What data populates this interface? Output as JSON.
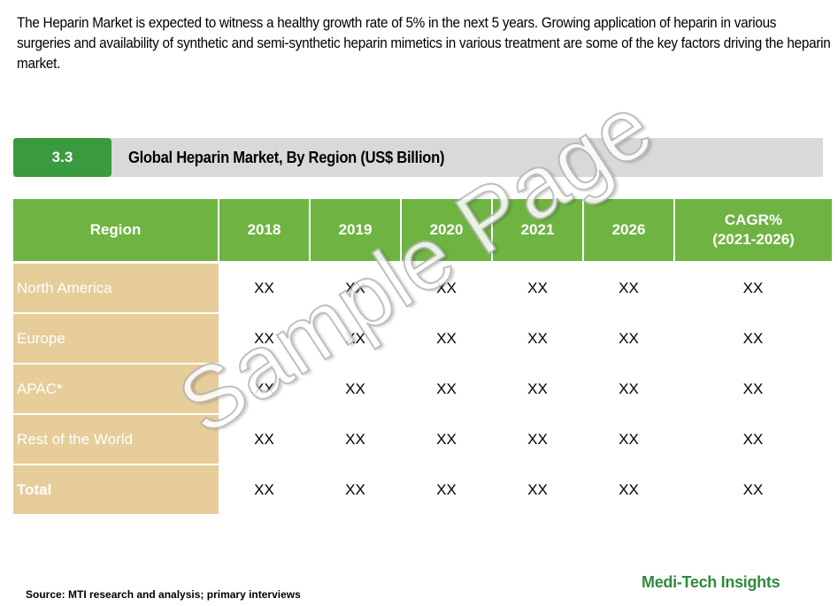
{
  "intro_text": "The Heparin Market is expected to witness a healthy growth rate of 5% in the next 5 years. Growing application of heparin in various surgeries and  availability of synthetic and semi-synthetic heparin mimetics in various treatment are some of the key factors driving the heparin market.",
  "section": {
    "number": "3.3",
    "title": "Global Heparin Market, By Region (US$ Billion)"
  },
  "table": {
    "headers": [
      "Region",
      "2018",
      "2019",
      "2020",
      "2021",
      "2026",
      "CAGR%",
      "(2021-2026)"
    ],
    "rows": [
      {
        "region": "North America",
        "values": [
          "XX",
          "XX",
          "XX",
          "XX",
          "XX",
          "XX"
        ]
      },
      {
        "region": "Europe",
        "values": [
          "XX",
          "XX",
          "XX",
          "XX",
          "XX",
          "XX"
        ]
      },
      {
        "region": "APAC*",
        "values": [
          "XX",
          "XX",
          "XX",
          "XX",
          "XX",
          "XX"
        ]
      },
      {
        "region": "Rest of the World",
        "values": [
          "XX",
          "XX",
          "XX",
          "XX",
          "XX",
          "XX"
        ]
      },
      {
        "region": "Total",
        "values": [
          "XX",
          "XX",
          "XX",
          "XX",
          "XX",
          "XX"
        ]
      }
    ]
  },
  "watermark": "Sample Page",
  "source": "Source: MTI research and analysis; primary interviews",
  "brand": "Medi-Tech Insights",
  "colors": {
    "header_green": "#6fb443",
    "section_green": "#3a9a3e",
    "region_tan": "#e6cd9a",
    "section_bar_gray": "#d9d9d9",
    "brand_green": "#2e8b3a"
  }
}
